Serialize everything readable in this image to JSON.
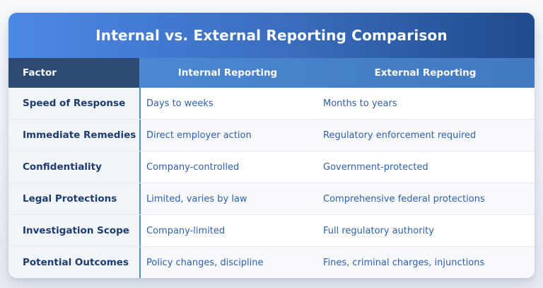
{
  "title": "Internal vs. External Reporting Comparison",
  "table": {
    "headers": {
      "factor": "Factor",
      "internal": "Internal Reporting",
      "external": "External Reporting"
    },
    "rows": [
      {
        "factor": "Speed of Response",
        "internal": "Days to weeks",
        "external": "Months to years"
      },
      {
        "factor": "Immediate Remedies",
        "internal": "Direct employer action",
        "external": "Regulatory enforcement required"
      },
      {
        "factor": "Confidentiality",
        "internal": "Company-controlled",
        "external": "Government-protected"
      },
      {
        "factor": "Legal Protections",
        "internal": "Limited, varies by law",
        "external": "Comprehensive federal protections"
      },
      {
        "factor": "Investigation Scope",
        "internal": "Company-limited",
        "external": "Full regulatory authority"
      },
      {
        "factor": "Potential Outcomes",
        "internal": "Policy changes, discipline",
        "external": "Fines, criminal charges, injunctions"
      }
    ]
  },
  "colors": {
    "title_gradient_left": "#4c88e6",
    "title_gradient_right": "#1e4b8b",
    "factor_header_bg": "#2c4a72",
    "column_header_bg": "#4781c9",
    "factor_column_bg": "#f1f4f8",
    "divider_blue": "#4a8fe0",
    "row_stripe_bg": "#f7f9fc",
    "factor_text": "#1d3c70",
    "value_text": "#3060ad",
    "page_bg": "#eef1f5"
  }
}
